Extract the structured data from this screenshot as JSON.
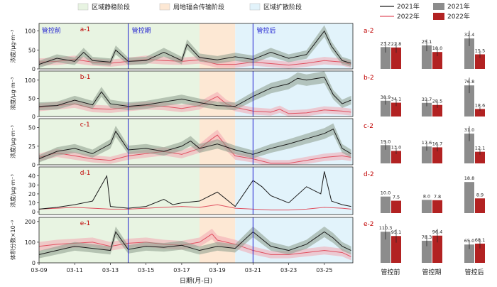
{
  "colors": {
    "stable_bg": "#e8f4e2",
    "transport_bg": "#fde8d4",
    "expand_bg": "#e2f3fb",
    "line_2021": "#1a1a1a",
    "band_2021": "#8a9a8a",
    "line_2022": "#e05060",
    "band_2022": "#f2a6b0",
    "bar_2021": "#8c8c8c",
    "bar_2022": "#b22222",
    "divider": "#1f1fd0",
    "panel_label": "#c00000"
  },
  "top_legend": [
    {
      "label": "区域静稳阶段",
      "color": "#e8f4e2"
    },
    {
      "label": "局地辐合传输阶段",
      "color": "#fde8d4"
    },
    {
      "label": "区域扩散阶段",
      "color": "#e2f3fb"
    }
  ],
  "line_legend": [
    {
      "label": "2021年",
      "kind": "line",
      "color": "#1a1a1a"
    },
    {
      "label": "2022年",
      "kind": "line",
      "color": "#e05060"
    }
  ],
  "bar_legend": [
    {
      "label": "2021年",
      "kind": "bar",
      "color": "#8c8c8c"
    },
    {
      "label": "2022年",
      "kind": "bar",
      "color": "#b22222"
    }
  ],
  "phases": {
    "labels": [
      "管控前",
      "管控期",
      "管控后"
    ],
    "boundaries_x": [
      14,
      21
    ],
    "stable": [
      9,
      18
    ],
    "transport": [
      18,
      20
    ],
    "expand": [
      20,
      26.6
    ]
  },
  "x_axis": {
    "label": "日期(月-日)",
    "range": [
      9,
      26.6
    ],
    "ticks": [
      9,
      11,
      13,
      15,
      17,
      19,
      21,
      23,
      25
    ],
    "tick_labels": [
      "03-09",
      "03-11",
      "03-13",
      "03-15",
      "03-17",
      "03-19",
      "03-21",
      "03-23",
      "03-25"
    ]
  },
  "chart_data": [
    {
      "type": "line",
      "panel": "a-1",
      "ylabel": "浓度/μg·m⁻³",
      "ylim": [
        0,
        120
      ],
      "yticks": [
        0,
        50,
        100
      ],
      "series": [
        {
          "name": "2021年",
          "x": [
            9,
            10,
            11,
            11.5,
            12,
            13,
            13.3,
            14,
            15,
            16,
            17,
            17.3,
            18,
            19,
            20,
            21,
            22,
            23,
            24,
            25,
            25.4,
            26,
            26.5
          ],
          "y": [
            12,
            28,
            20,
            44,
            22,
            18,
            50,
            20,
            22,
            44,
            22,
            65,
            30,
            24,
            32,
            25,
            44,
            28,
            38,
            100,
            60,
            22,
            15
          ]
        },
        {
          "name": "2022年",
          "x": [
            9,
            10,
            11,
            12,
            13,
            14,
            15,
            16,
            17,
            18,
            19,
            20,
            21,
            22,
            23,
            24,
            25,
            26,
            26.5
          ],
          "y": [
            18,
            20,
            25,
            18,
            15,
            20,
            25,
            22,
            20,
            24,
            12,
            12,
            18,
            14,
            10,
            15,
            22,
            18,
            12
          ]
        }
      ]
    },
    {
      "type": "line",
      "panel": "b-1",
      "ylabel": "浓度/μg·m⁻³",
      "ylim": [
        0,
        125
      ],
      "yticks": [
        0,
        50,
        100
      ],
      "series": [
        {
          "name": "2021年",
          "x": [
            9,
            10,
            11,
            12,
            12.5,
            13,
            14,
            15,
            16,
            17,
            18,
            19,
            20,
            21,
            22,
            23,
            23.5,
            24,
            25,
            25.5,
            26,
            26.5
          ],
          "y": [
            28,
            30,
            45,
            32,
            68,
            35,
            28,
            32,
            40,
            48,
            38,
            30,
            28,
            55,
            78,
            90,
            105,
            100,
            108,
            60,
            35,
            45
          ]
        },
        {
          "name": "2022年",
          "x": [
            9,
            10,
            11,
            12,
            13,
            14,
            15,
            16,
            17,
            18,
            18.7,
            19,
            19.5,
            20,
            21,
            22,
            22.5,
            23,
            24,
            25,
            26,
            26.5
          ],
          "y": [
            25,
            30,
            35,
            22,
            20,
            25,
            30,
            28,
            22,
            30,
            48,
            55,
            35,
            25,
            15,
            12,
            20,
            8,
            10,
            18,
            15,
            12
          ]
        }
      ]
    },
    {
      "type": "line",
      "panel": "c-1",
      "ylabel": "浓度/μg·m⁻³",
      "ylim": [
        0,
        62
      ],
      "yticks": [
        0,
        25,
        50
      ],
      "series": [
        {
          "name": "2021年",
          "x": [
            9,
            10,
            11,
            12,
            13,
            13.3,
            14,
            15,
            16,
            17,
            17.5,
            18,
            19,
            20,
            21,
            22,
            23,
            24,
            25,
            25.5,
            26,
            26.5
          ],
          "y": [
            8,
            18,
            22,
            15,
            28,
            45,
            20,
            22,
            18,
            25,
            32,
            22,
            28,
            20,
            14,
            22,
            28,
            35,
            42,
            48,
            22,
            15
          ]
        },
        {
          "name": "2022年",
          "x": [
            9,
            10,
            11,
            12,
            13,
            14,
            15,
            16,
            17,
            18,
            18.7,
            19,
            19.5,
            20,
            21,
            21.5,
            22,
            23,
            24,
            25,
            26,
            26.5
          ],
          "y": [
            10,
            16,
            12,
            8,
            6,
            12,
            15,
            18,
            14,
            22,
            35,
            40,
            25,
            12,
            8,
            5,
            2,
            2,
            6,
            10,
            12,
            10
          ]
        }
      ]
    },
    {
      "type": "line",
      "panel": "d-1",
      "ylabel": "浓度/μg·m⁻³",
      "ylim": [
        -3,
        50
      ],
      "yticks": [
        0,
        10,
        20,
        30,
        40
      ],
      "series": [
        {
          "name": "2021年",
          "x": [
            9,
            10,
            11,
            12,
            12.8,
            13,
            14,
            15,
            16,
            16.5,
            17,
            18,
            19,
            20,
            21,
            21.5,
            22,
            23,
            24,
            24.8,
            25,
            25.4,
            26,
            26.5
          ],
          "y": [
            3,
            5,
            8,
            12,
            40,
            6,
            4,
            6,
            14,
            8,
            10,
            12,
            22,
            6,
            35,
            28,
            18,
            10,
            28,
            20,
            45,
            12,
            8,
            6
          ]
        },
        {
          "name": "2022年",
          "x": [
            9,
            10,
            11,
            12,
            13,
            14,
            15,
            16,
            17,
            18,
            19,
            20,
            21,
            22,
            23,
            24,
            25,
            26,
            26.5
          ],
          "y": [
            3,
            4,
            5,
            4,
            3,
            3,
            4,
            5,
            6,
            5,
            8,
            4,
            3,
            2,
            2,
            3,
            5,
            4,
            3
          ]
        }
      ]
    },
    {
      "type": "line",
      "panel": "e-1",
      "ylabel": "体积分数×10⁻⁹",
      "ylim": [
        0,
        220
      ],
      "yticks": [
        0,
        100,
        200
      ],
      "series": [
        {
          "name": "2021年",
          "x": [
            9,
            10,
            11,
            12,
            13,
            13.3,
            14,
            15,
            16,
            17,
            18,
            19,
            20,
            21,
            22,
            23,
            24,
            25,
            25.5,
            26,
            26.5
          ],
          "y": [
            40,
            60,
            80,
            70,
            60,
            150,
            65,
            80,
            75,
            85,
            60,
            80,
            70,
            150,
            80,
            60,
            90,
            150,
            120,
            80,
            60
          ]
        },
        {
          "name": "2022年",
          "x": [
            9,
            10,
            11,
            12,
            13,
            14,
            15,
            16,
            17,
            18,
            18.7,
            19,
            20,
            21,
            22,
            23,
            24,
            25,
            26,
            26.5
          ],
          "y": [
            80,
            90,
            95,
            100,
            80,
            95,
            100,
            90,
            85,
            100,
            140,
            110,
            90,
            60,
            40,
            40,
            50,
            60,
            50,
            30
          ]
        }
      ]
    },
    {
      "type": "bar",
      "panel": "a-2",
      "categories": [
        "管控前",
        "管控期",
        "管控后"
      ],
      "series": [
        {
          "name": "2021年",
          "values": [
            23.2,
            25.1,
            32.4
          ]
        },
        {
          "name": "2022年",
          "values": [
            22.8,
            18.0,
            15.5
          ]
        }
      ]
    },
    {
      "type": "bar",
      "panel": "b-2",
      "categories": [
        "管控前",
        "管控期",
        "管控后"
      ],
      "series": [
        {
          "name": "2021年",
          "values": [
            38.9,
            33.7,
            76.8
          ]
        },
        {
          "name": "2022年",
          "values": [
            34.1,
            28.5,
            18.6
          ]
        }
      ]
    },
    {
      "type": "bar",
      "panel": "c-2",
      "categories": [
        "管控前",
        "管控期",
        "管控后"
      ],
      "series": [
        {
          "name": "2021年",
          "values": [
            19.0,
            17.6,
            31.0
          ]
        },
        {
          "name": "2022年",
          "values": [
            13.0,
            16.7,
            12.1
          ]
        }
      ]
    },
    {
      "type": "bar",
      "panel": "d-2",
      "categories": [
        "管控前",
        "管控期",
        "管控后"
      ],
      "series": [
        {
          "name": "2021年",
          "values": [
            10.0,
            8.0,
            18.8
          ]
        },
        {
          "name": "2022年",
          "values": [
            7.5,
            7.8,
            8.9
          ]
        }
      ]
    },
    {
      "type": "bar",
      "panel": "e-2",
      "categories": [
        "管控前",
        "管控期",
        "管控后"
      ],
      "series": [
        {
          "name": "2021年",
          "values": [
            110.3,
            78.3,
            65.0
          ]
        },
        {
          "name": "2022年",
          "values": [
            95.1,
            96.4,
            68.1
          ]
        }
      ]
    }
  ]
}
